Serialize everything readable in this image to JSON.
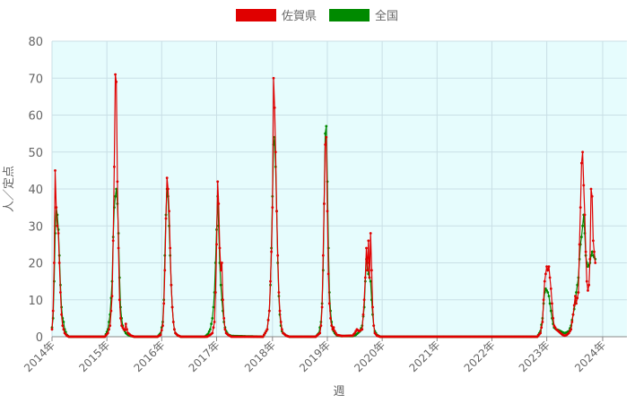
{
  "chart_data": {
    "type": "line",
    "xlabel": "週",
    "ylabel": "人／定点",
    "ylim": [
      0,
      80
    ],
    "yticks": [
      0,
      10,
      20,
      30,
      40,
      50,
      60,
      70,
      80
    ],
    "x_tick_labels": [
      "2014年",
      "2015年",
      "2016年",
      "2017年",
      "2018年",
      "2019年",
      "2020年",
      "2021年",
      "2022年",
      "2023年",
      "2024年"
    ],
    "x_tick_positions": [
      0,
      52,
      104,
      156,
      209,
      261,
      313,
      365,
      417,
      469,
      522
    ],
    "x_end": 545,
    "legend_position": "top-center",
    "plot_background": "#e6fcfd",
    "grid": true,
    "series": [
      {
        "name": "佐賀県",
        "color": "#e00000",
        "anchors": [
          [
            0,
            2
          ],
          [
            1,
            7
          ],
          [
            2,
            20
          ],
          [
            3,
            45
          ],
          [
            4,
            35
          ],
          [
            5,
            30
          ],
          [
            6,
            28
          ],
          [
            7,
            20
          ],
          [
            8,
            12
          ],
          [
            9,
            6
          ],
          [
            10,
            3
          ],
          [
            11,
            2
          ],
          [
            12,
            1
          ],
          [
            14,
            0.3
          ],
          [
            16,
            0
          ],
          [
            50,
            0
          ],
          [
            53,
            1
          ],
          [
            55,
            3
          ],
          [
            57,
            11
          ],
          [
            58,
            26
          ],
          [
            59,
            46
          ],
          [
            60,
            71
          ],
          [
            61,
            69
          ],
          [
            62,
            42
          ],
          [
            63,
            24
          ],
          [
            64,
            10
          ],
          [
            65,
            5
          ],
          [
            66,
            3
          ],
          [
            67,
            2.5
          ],
          [
            68,
            2
          ],
          [
            69,
            1.8
          ],
          [
            70,
            3.5
          ],
          [
            71,
            2
          ],
          [
            72,
            1
          ],
          [
            75,
            0.3
          ],
          [
            78,
            0
          ],
          [
            100,
            0
          ],
          [
            103,
            0.5
          ],
          [
            105,
            3
          ],
          [
            106,
            9
          ],
          [
            107,
            18
          ],
          [
            108,
            32
          ],
          [
            109,
            43
          ],
          [
            110,
            40
          ],
          [
            111,
            34
          ],
          [
            112,
            24
          ],
          [
            113,
            14
          ],
          [
            114,
            8
          ],
          [
            115,
            4
          ],
          [
            116,
            2
          ],
          [
            117,
            1
          ],
          [
            119,
            0.4
          ],
          [
            122,
            0
          ],
          [
            147,
            0
          ],
          [
            150,
            0.5
          ],
          [
            152,
            1
          ],
          [
            154,
            4
          ],
          [
            155,
            12
          ],
          [
            156,
            25
          ],
          [
            157,
            42
          ],
          [
            158,
            36
          ],
          [
            159,
            24
          ],
          [
            160,
            18
          ],
          [
            161,
            20
          ],
          [
            162,
            10
          ],
          [
            163,
            5
          ],
          [
            164,
            2
          ],
          [
            165,
            1
          ],
          [
            167,
            0.5
          ],
          [
            170,
            0
          ],
          [
            200,
            0
          ],
          [
            204,
            2
          ],
          [
            206,
            7
          ],
          [
            207,
            15
          ],
          [
            208,
            23
          ],
          [
            209,
            35
          ],
          [
            210,
            70
          ],
          [
            211,
            62
          ],
          [
            212,
            50
          ],
          [
            213,
            34
          ],
          [
            214,
            22
          ],
          [
            215,
            12
          ],
          [
            216,
            7
          ],
          [
            217,
            4
          ],
          [
            218,
            2
          ],
          [
            219,
            1
          ],
          [
            222,
            0.3
          ],
          [
            225,
            0
          ],
          [
            250,
            0
          ],
          [
            254,
            1
          ],
          [
            255,
            3
          ],
          [
            256,
            8
          ],
          [
            257,
            22
          ],
          [
            258,
            36
          ],
          [
            259,
            52
          ],
          [
            260,
            54
          ],
          [
            261,
            34
          ],
          [
            262,
            17
          ],
          [
            263,
            9
          ],
          [
            264,
            5
          ],
          [
            265,
            3
          ],
          [
            266,
            2
          ],
          [
            267,
            2.5
          ],
          [
            268,
            1.5
          ],
          [
            270,
            0.5
          ],
          [
            275,
            0.2
          ],
          [
            285,
            0.3
          ],
          [
            287,
            1
          ],
          [
            289,
            2
          ],
          [
            291,
            1.5
          ],
          [
            294,
            2
          ],
          [
            296,
            10
          ],
          [
            297,
            16
          ],
          [
            298,
            24
          ],
          [
            299,
            18
          ],
          [
            300,
            26
          ],
          [
            301,
            16
          ],
          [
            302,
            28
          ],
          [
            303,
            18
          ],
          [
            304,
            8
          ],
          [
            305,
            3
          ],
          [
            306,
            1
          ],
          [
            308,
            0.3
          ],
          [
            311,
            0
          ],
          [
            460,
            0
          ],
          [
            463,
            1
          ],
          [
            465,
            4
          ],
          [
            466,
            10
          ],
          [
            467,
            15
          ],
          [
            468,
            17
          ],
          [
            469,
            19
          ],
          [
            470,
            18
          ],
          [
            471,
            19
          ],
          [
            472,
            16
          ],
          [
            473,
            13
          ],
          [
            474,
            9
          ],
          [
            475,
            5
          ],
          [
            476,
            3
          ],
          [
            478,
            2
          ],
          [
            480,
            1.5
          ],
          [
            482,
            1
          ],
          [
            484,
            0.5
          ],
          [
            486,
            0.3
          ],
          [
            488,
            0.5
          ],
          [
            490,
            1
          ],
          [
            492,
            2
          ],
          [
            494,
            6
          ],
          [
            496,
            11
          ],
          [
            497,
            9
          ],
          [
            499,
            12
          ],
          [
            500,
            25
          ],
          [
            501,
            35
          ],
          [
            502,
            47
          ],
          [
            503,
            50
          ],
          [
            504,
            41
          ],
          [
            505,
            33
          ],
          [
            506,
            23
          ],
          [
            507,
            15
          ],
          [
            508,
            12.5
          ],
          [
            509,
            14
          ],
          [
            510,
            21
          ],
          [
            511,
            40
          ],
          [
            512,
            38
          ],
          [
            513,
            26
          ],
          [
            515,
            20
          ]
        ]
      },
      {
        "name": "全国",
        "color": "#008a00",
        "anchors": [
          [
            0,
            2.5
          ],
          [
            1,
            5
          ],
          [
            2,
            15
          ],
          [
            3,
            28
          ],
          [
            4,
            35
          ],
          [
            5,
            33
          ],
          [
            6,
            29
          ],
          [
            7,
            22
          ],
          [
            8,
            14
          ],
          [
            9,
            8
          ],
          [
            10,
            5
          ],
          [
            11,
            4
          ],
          [
            12,
            2
          ],
          [
            14,
            0.5
          ],
          [
            16,
            0
          ],
          [
            50,
            0
          ],
          [
            53,
            2
          ],
          [
            55,
            6
          ],
          [
            57,
            15
          ],
          [
            58,
            27
          ],
          [
            59,
            35
          ],
          [
            60,
            38
          ],
          [
            61,
            40
          ],
          [
            62,
            36
          ],
          [
            63,
            28
          ],
          [
            64,
            16
          ],
          [
            65,
            8
          ],
          [
            66,
            5
          ],
          [
            67,
            3
          ],
          [
            68,
            2
          ],
          [
            69,
            1.5
          ],
          [
            70,
            1
          ],
          [
            72,
            0.5
          ],
          [
            75,
            0.2
          ],
          [
            78,
            0
          ],
          [
            100,
            0
          ],
          [
            103,
            1
          ],
          [
            105,
            4
          ],
          [
            106,
            10
          ],
          [
            107,
            22
          ],
          [
            108,
            33
          ],
          [
            109,
            40
          ],
          [
            110,
            38
          ],
          [
            111,
            30
          ],
          [
            112,
            22
          ],
          [
            113,
            14
          ],
          [
            114,
            8
          ],
          [
            115,
            4
          ],
          [
            116,
            2
          ],
          [
            117,
            1
          ],
          [
            119,
            0.4
          ],
          [
            122,
            0
          ],
          [
            145,
            0
          ],
          [
            148,
            0.8
          ],
          [
            150,
            2
          ],
          [
            152,
            5
          ],
          [
            153,
            8
          ],
          [
            154,
            12
          ],
          [
            155,
            20
          ],
          [
            156,
            29
          ],
          [
            157,
            38
          ],
          [
            158,
            30
          ],
          [
            159,
            20
          ],
          [
            160,
            14
          ],
          [
            161,
            10
          ],
          [
            162,
            7
          ],
          [
            163,
            4
          ],
          [
            164,
            2.5
          ],
          [
            165,
            1.5
          ],
          [
            167,
            0.6
          ],
          [
            170,
            0.2
          ],
          [
            200,
            0
          ],
          [
            204,
            2
          ],
          [
            206,
            7
          ],
          [
            207,
            14
          ],
          [
            208,
            24
          ],
          [
            209,
            38
          ],
          [
            210,
            52
          ],
          [
            211,
            54
          ],
          [
            212,
            46
          ],
          [
            213,
            34
          ],
          [
            214,
            20
          ],
          [
            215,
            11
          ],
          [
            216,
            6
          ],
          [
            217,
            3
          ],
          [
            218,
            1.5
          ],
          [
            219,
            1
          ],
          [
            222,
            0.3
          ],
          [
            225,
            0
          ],
          [
            250,
            0
          ],
          [
            253,
            1
          ],
          [
            255,
            4
          ],
          [
            256,
            9
          ],
          [
            257,
            18
          ],
          [
            258,
            36
          ],
          [
            259,
            55
          ],
          [
            260,
            57
          ],
          [
            261,
            42
          ],
          [
            262,
            24
          ],
          [
            263,
            12
          ],
          [
            264,
            7
          ],
          [
            265,
            4
          ],
          [
            266,
            2.5
          ],
          [
            267,
            1.5
          ],
          [
            268,
            1
          ],
          [
            270,
            0.4
          ],
          [
            274,
            0.2
          ],
          [
            285,
            0.2
          ],
          [
            288,
            0.5
          ],
          [
            290,
            1
          ],
          [
            292,
            1.5
          ],
          [
            294,
            3
          ],
          [
            296,
            8
          ],
          [
            297,
            15
          ],
          [
            298,
            21
          ],
          [
            299,
            20
          ],
          [
            300,
            17
          ],
          [
            301,
            16
          ],
          [
            302,
            15
          ],
          [
            303,
            10
          ],
          [
            304,
            6
          ],
          [
            305,
            3
          ],
          [
            306,
            1.5
          ],
          [
            308,
            0.5
          ],
          [
            311,
            0
          ],
          [
            460,
            0
          ],
          [
            463,
            1.5
          ],
          [
            465,
            5
          ],
          [
            466,
            9
          ],
          [
            467,
            12
          ],
          [
            468,
            13
          ],
          [
            469,
            12.5
          ],
          [
            470,
            12
          ],
          [
            471,
            11
          ],
          [
            472,
            9
          ],
          [
            473,
            7
          ],
          [
            474,
            5
          ],
          [
            475,
            3.5
          ],
          [
            476,
            2.5
          ],
          [
            478,
            2
          ],
          [
            480,
            1.8
          ],
          [
            482,
            1.5
          ],
          [
            484,
            1.2
          ],
          [
            486,
            1
          ],
          [
            488,
            1.2
          ],
          [
            490,
            1.5
          ],
          [
            492,
            3
          ],
          [
            494,
            6
          ],
          [
            496,
            9
          ],
          [
            497,
            12
          ],
          [
            499,
            16
          ],
          [
            500,
            21
          ],
          [
            501,
            25
          ],
          [
            502,
            27
          ],
          [
            503,
            30
          ],
          [
            504,
            33
          ],
          [
            505,
            28
          ],
          [
            506,
            22
          ],
          [
            507,
            20
          ],
          [
            508,
            19
          ],
          [
            509,
            19.5
          ],
          [
            510,
            20
          ],
          [
            511,
            22
          ],
          [
            512,
            23
          ],
          [
            513,
            22
          ],
          [
            515,
            21
          ]
        ]
      }
    ]
  }
}
